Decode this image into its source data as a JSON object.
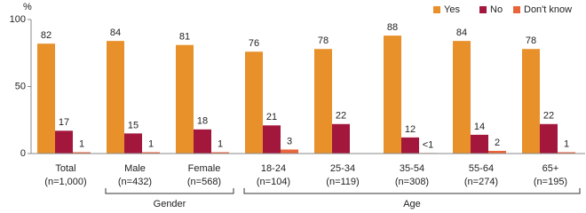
{
  "chart_data": {
    "type": "bar",
    "y_unit": "%",
    "categories": [
      "Total",
      "Male",
      "Female",
      "18-24",
      "25-34",
      "35-54",
      "55-64",
      "65+"
    ],
    "sample_sizes": [
      "(n=1,000)",
      "(n=432)",
      "(n=568)",
      "(n=104)",
      "(n=119)",
      "(n=308)",
      "(n=274)",
      "(n=195)"
    ],
    "series": [
      {
        "name": "Yes",
        "color": "#e8902a",
        "values": [
          82,
          84,
          81,
          76,
          78,
          88,
          84,
          78
        ]
      },
      {
        "name": "No",
        "color": "#a3173c",
        "values": [
          17,
          15,
          18,
          21,
          22,
          12,
          14,
          22
        ]
      },
      {
        "name": "Don't know",
        "color": "#e8653c",
        "values": [
          1,
          1,
          1,
          3,
          null,
          0.4,
          2,
          1
        ],
        "value_labels": [
          "1",
          "1",
          "1",
          "3",
          null,
          "<1",
          "2",
          "1"
        ]
      }
    ],
    "groups": [
      {
        "label": "Gender",
        "start": 1,
        "end": 2
      },
      {
        "label": "Age",
        "start": 3,
        "end": 7
      }
    ],
    "ylim": [
      0,
      100
    ],
    "yticks": [
      0,
      50,
      100
    ],
    "legend": "top-right"
  }
}
